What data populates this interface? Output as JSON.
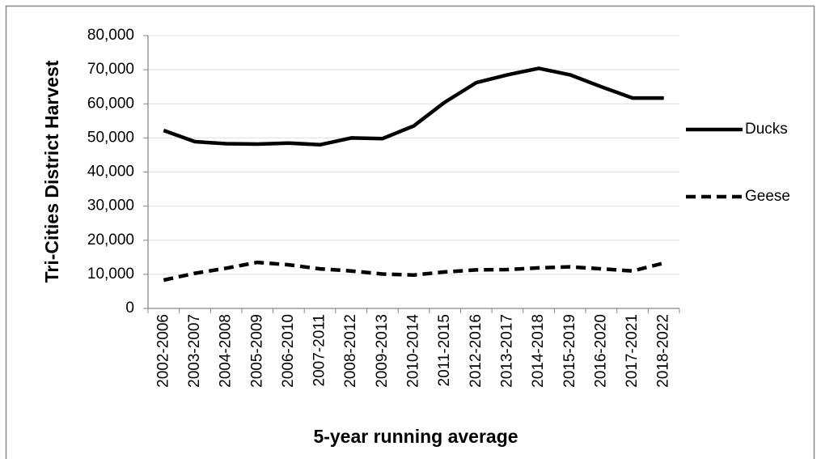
{
  "chart_data": {
    "type": "line",
    "y_label": "Tri-Cities District Harvest",
    "x_label": "5-year running average",
    "categories": [
      "2002-2006",
      "2003-2007",
      "2004-2008",
      "2005-2009",
      "2006-2010",
      "2007-2011",
      "2008-2012",
      "2009-2013",
      "2010-2014",
      "2011-2015",
      "2012-2016",
      "2013-2017",
      "2014-2018",
      "2015-2019",
      "2016-2020",
      "2017-2021",
      "2018-2022"
    ],
    "series": [
      {
        "name": "Ducks",
        "color": "#000000",
        "dash": "solid",
        "values": [
          52200,
          48900,
          48300,
          48200,
          48500,
          48000,
          50000,
          49800,
          53500,
          60500,
          66200,
          68500,
          70400,
          68500,
          65000,
          61700,
          61700
        ]
      },
      {
        "name": "Geese",
        "color": "#000000",
        "dash": "dashed",
        "values": [
          8300,
          10300,
          11800,
          13500,
          12800,
          11600,
          11000,
          10100,
          9800,
          10700,
          11300,
          11400,
          11900,
          12200,
          11600,
          11000,
          13300
        ]
      }
    ],
    "ylim": [
      0,
      80000
    ],
    "yticks": [
      0,
      {
        "value": 10000,
        "label": "10,000"
      },
      {
        "value": 20000,
        "label": "20,000"
      },
      {
        "value": 30000,
        "label": "30,000"
      },
      {
        "value": 40000,
        "label": "40,000"
      },
      {
        "value": 50000,
        "label": "50,000"
      },
      {
        "value": 60000,
        "label": "60,000"
      },
      {
        "value": 70000,
        "label": "70,000"
      },
      {
        "value": 80000,
        "label": "80,000"
      }
    ],
    "grid": true,
    "legend": "right"
  }
}
